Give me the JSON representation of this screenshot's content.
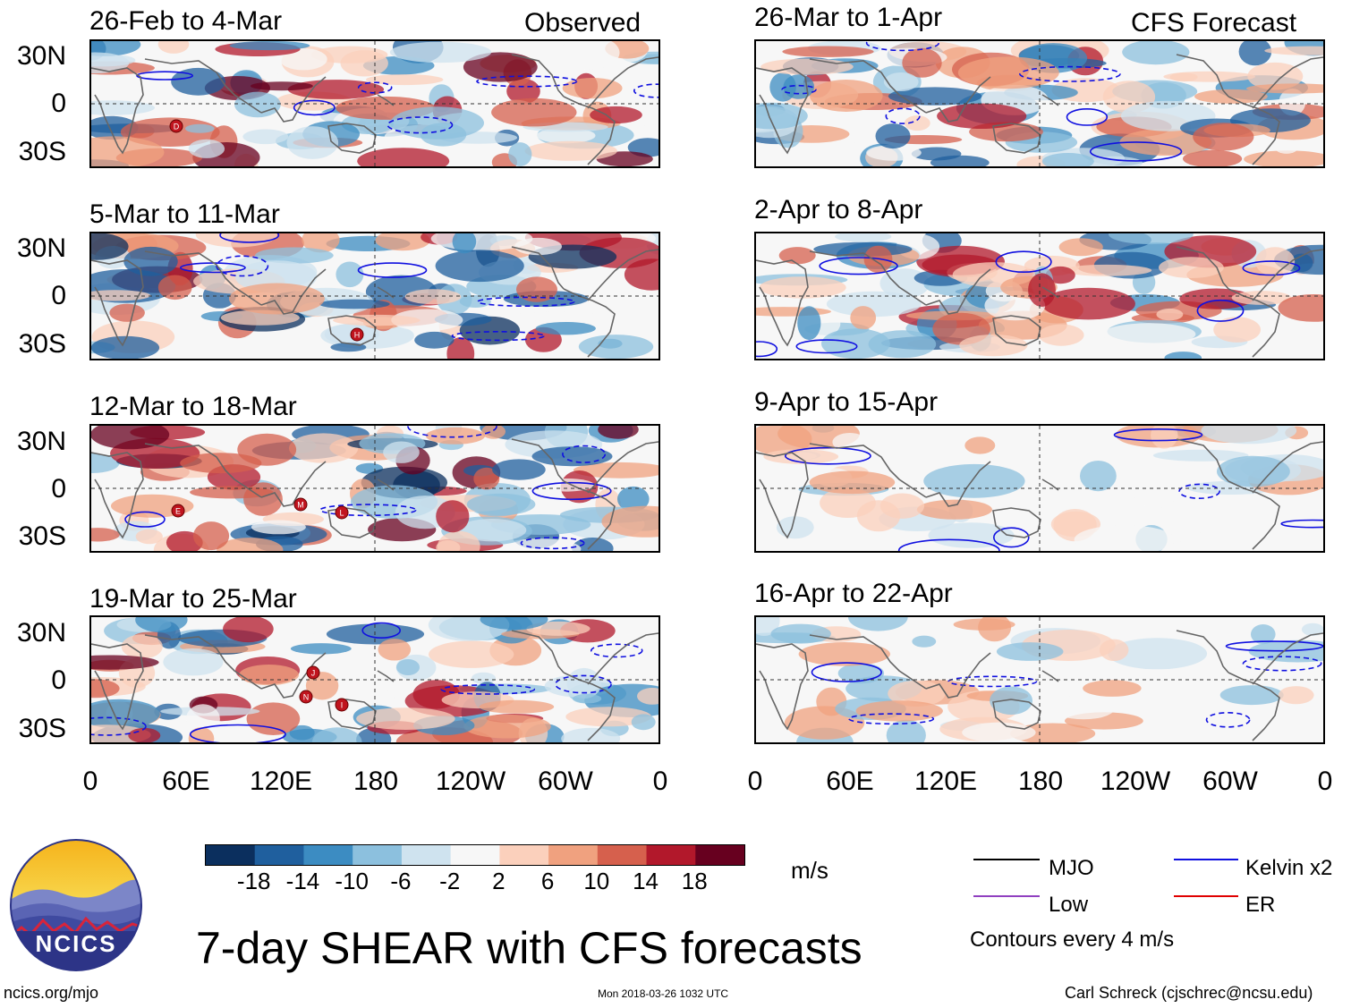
{
  "header": {
    "left_label": "Observed",
    "right_label": "CFS Forecast"
  },
  "panels": {
    "observed": [
      {
        "title": "26-Feb to 4-Mar",
        "storms": [
          "D"
        ]
      },
      {
        "title": "5-Mar to 11-Mar",
        "storms": [
          "H"
        ]
      },
      {
        "title": "12-Mar to 18-Mar",
        "storms": [
          "E",
          "M",
          "L"
        ]
      },
      {
        "title": "19-Mar to 25-Mar",
        "storms": [
          "J",
          "N",
          "I"
        ]
      }
    ],
    "forecast": [
      {
        "title": "26-Mar to 1-Apr"
      },
      {
        "title": "2-Apr to 8-Apr"
      },
      {
        "title": "9-Apr to 15-Apr"
      },
      {
        "title": "16-Apr to 22-Apr"
      }
    ]
  },
  "axes": {
    "y_ticks": [
      "30N",
      "0",
      "30S"
    ],
    "x_ticks": [
      "0",
      "60E",
      "120E",
      "180",
      "120W",
      "60W",
      "0"
    ]
  },
  "colorbar": {
    "ticks": [
      "-18",
      "-14",
      "-10",
      "-6",
      "-2",
      "2",
      "6",
      "10",
      "14",
      "18"
    ],
    "units": "m/s",
    "colors": [
      "#0b2f5e",
      "#1f5f9e",
      "#3c8cc2",
      "#8cc0de",
      "#cfe3ef",
      "#f7f7f7",
      "#fbd0bc",
      "#f0a17f",
      "#d6604d",
      "#b2182b",
      "#67001f"
    ]
  },
  "legend": {
    "items": [
      {
        "label": "MJO",
        "color": "#000000"
      },
      {
        "label": "Kelvin x2",
        "color": "#1010e0"
      },
      {
        "label": "Low",
        "color": "#9040c0"
      },
      {
        "label": "ER",
        "color": "#e00000"
      }
    ],
    "note": "Contours every 4 m/s"
  },
  "logo": {
    "text": "NCICS"
  },
  "title": "7-day SHEAR with CFS forecasts",
  "footer": {
    "website": "ncics.org/mjo",
    "timestamp": "Mon 2018-03-26 1032 UTC",
    "author": "Carl Schreck (cjschrec@ncsu.edu)"
  }
}
